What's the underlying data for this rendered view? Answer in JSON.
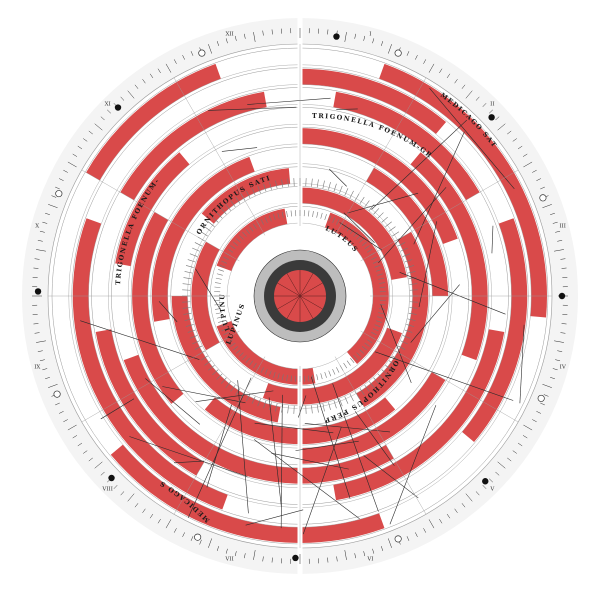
{
  "colors": {
    "background": "#ffffff",
    "disc": "#f4f4f4",
    "ring": "#ffffff",
    "fill": "#d94a4a",
    "line": "#2a2a2a",
    "grid": "#9a9a9a",
    "core": "#3a3a3a"
  },
  "labels": {
    "trigonella_right": "TRIGONELLA FOENUM-GRAECUM",
    "trigonella_left": "TRIGONELLA FOENUM-GRAECUM",
    "medicago_top_right": "MEDICAGO SATIVA",
    "medicago_bottom_left": "MEDICAGO SATIVA",
    "lupinus": "LUPINUS",
    "ornithopus_top": "ORNITHOPUS SATIVUS",
    "ornithopus_bottom": "ORNITHOPUS PERPUSILLUS",
    "lupinus_inner": "LUPINUS",
    "luteus": "LUTEUS"
  },
  "roman_numerals": [
    "I",
    "II",
    "III",
    "IV",
    "V",
    "VI",
    "VII",
    "VIII",
    "IX",
    "X",
    "XI",
    "XII"
  ],
  "rings": [
    {
      "name": "ring-1",
      "segments": [
        [
          20,
          95
        ],
        [
          160,
          230
        ],
        [
          300,
          340
        ]
      ]
    },
    {
      "name": "ring-2",
      "segments": [
        [
          0,
          40
        ],
        [
          70,
          130
        ],
        [
          200,
          290
        ]
      ]
    },
    {
      "name": "ring-3",
      "segments": [
        [
          10,
          60
        ],
        [
          100,
          170
        ],
        [
          210,
          260
        ],
        [
          300,
          350
        ]
      ]
    },
    {
      "name": "ring-4",
      "segments": [
        [
          40,
          110
        ],
        [
          150,
          250
        ],
        [
          280,
          320
        ]
      ]
    },
    {
      "name": "ring-5",
      "segments": [
        [
          0,
          70
        ],
        [
          120,
          180
        ],
        [
          230,
          300
        ]
      ]
    },
    {
      "name": "ring-6",
      "segments": [
        [
          30,
          90
        ],
        [
          140,
          220
        ],
        [
          260,
          340
        ]
      ]
    },
    {
      "name": "ring-7",
      "segments": [
        [
          60,
          150
        ],
        [
          190,
          270
        ],
        [
          310,
          355
        ]
      ]
    },
    {
      "name": "ring-8",
      "segments": [
        [
          0,
          80
        ],
        [
          110,
          200
        ],
        [
          240,
          300
        ]
      ]
    },
    {
      "name": "ring-9",
      "segments": [
        [
          20,
          140
        ],
        [
          170,
          250
        ],
        [
          290,
          350
        ]
      ]
    }
  ],
  "markers": [
    8,
    22,
    47,
    68,
    90,
    113,
    135,
    158,
    181,
    203,
    226,
    248,
    271,
    293,
    316,
    338
  ]
}
